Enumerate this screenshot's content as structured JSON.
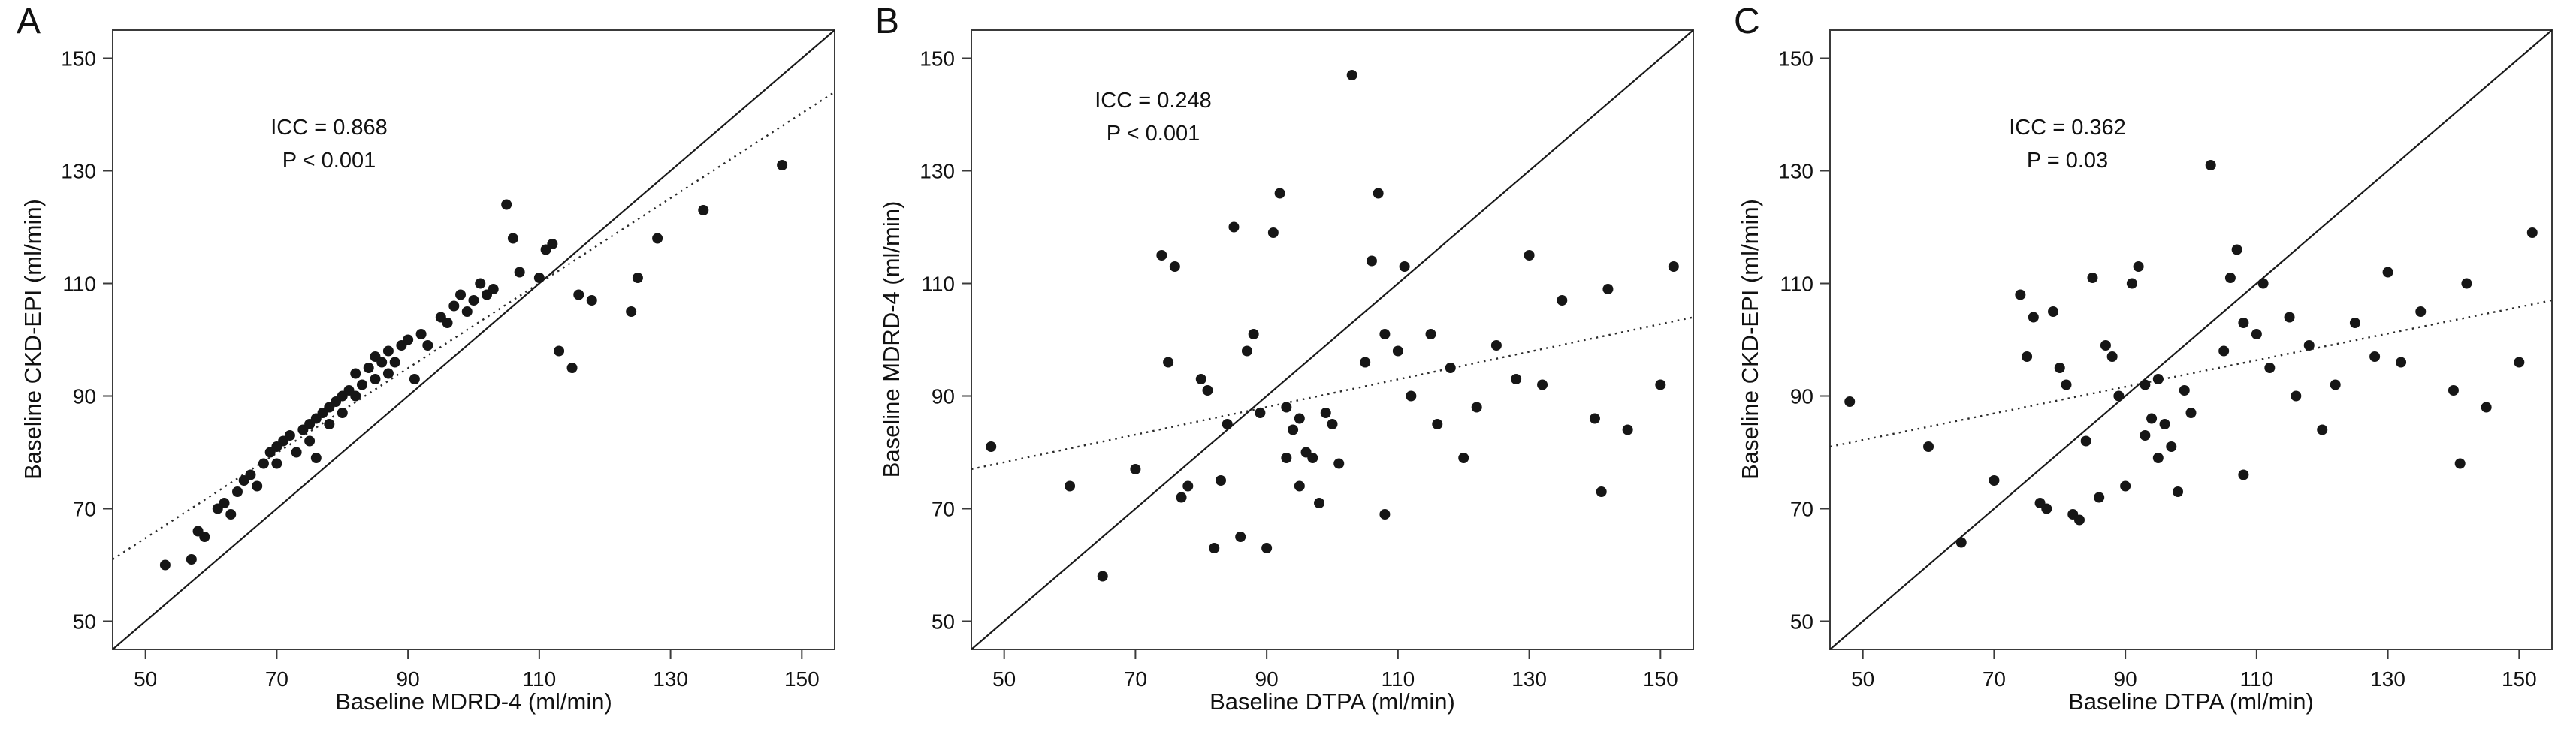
{
  "chart_data": [
    {
      "type": "scatter",
      "panel_label": "A",
      "xlabel": "Baseline MDRD-4 (ml/min)",
      "ylabel": "Baseline CKD-EPI (ml/min)",
      "icc_text": "ICC = 0.868",
      "p_text": "P < 0.001",
      "xlim": [
        45,
        155
      ],
      "ylim": [
        45,
        155
      ],
      "xticks": [
        50,
        70,
        90,
        110,
        130,
        150
      ],
      "yticks": [
        50,
        70,
        90,
        110,
        130,
        150
      ],
      "grid": false,
      "identity_line": {
        "x": [
          45,
          155
        ],
        "y": [
          45,
          155
        ]
      },
      "fit_line": {
        "x": [
          45,
          155
        ],
        "y": [
          61,
          144
        ]
      },
      "point_color": "#161616",
      "points": [
        [
          53,
          60
        ],
        [
          57,
          61
        ],
        [
          58,
          66
        ],
        [
          59,
          65
        ],
        [
          61,
          70
        ],
        [
          62,
          71
        ],
        [
          63,
          69
        ],
        [
          64,
          73
        ],
        [
          65,
          75
        ],
        [
          66,
          76
        ],
        [
          67,
          74
        ],
        [
          68,
          78
        ],
        [
          69,
          80
        ],
        [
          70,
          81
        ],
        [
          70,
          78
        ],
        [
          71,
          82
        ],
        [
          72,
          83
        ],
        [
          73,
          80
        ],
        [
          74,
          84
        ],
        [
          75,
          85
        ],
        [
          75,
          82
        ],
        [
          76,
          86
        ],
        [
          76,
          79
        ],
        [
          77,
          87
        ],
        [
          78,
          85
        ],
        [
          78,
          88
        ],
        [
          79,
          89
        ],
        [
          80,
          90
        ],
        [
          80,
          87
        ],
        [
          81,
          91
        ],
        [
          82,
          90
        ],
        [
          82,
          94
        ],
        [
          83,
          92
        ],
        [
          84,
          95
        ],
        [
          85,
          93
        ],
        [
          85,
          97
        ],
        [
          86,
          96
        ],
        [
          87,
          94
        ],
        [
          87,
          98
        ],
        [
          88,
          96
        ],
        [
          89,
          99
        ],
        [
          90,
          100
        ],
        [
          91,
          93
        ],
        [
          92,
          101
        ],
        [
          93,
          99
        ],
        [
          95,
          104
        ],
        [
          96,
          103
        ],
        [
          97,
          106
        ],
        [
          98,
          108
        ],
        [
          99,
          105
        ],
        [
          100,
          107
        ],
        [
          101,
          110
        ],
        [
          102,
          108
        ],
        [
          103,
          109
        ],
        [
          105,
          124
        ],
        [
          106,
          118
        ],
        [
          107,
          112
        ],
        [
          110,
          111
        ],
        [
          111,
          116
        ],
        [
          112,
          117
        ],
        [
          113,
          98
        ],
        [
          115,
          95
        ],
        [
          116,
          108
        ],
        [
          118,
          107
        ],
        [
          124,
          105
        ],
        [
          125,
          111
        ],
        [
          128,
          118
        ],
        [
          135,
          123
        ],
        [
          147,
          131
        ]
      ]
    },
    {
      "type": "scatter",
      "panel_label": "B",
      "xlabel": "Baseline DTPA (ml/min)",
      "ylabel": "Baseline MDRD-4 (ml/min)",
      "icc_text": "ICC = 0.248",
      "p_text": "P < 0.001",
      "xlim": [
        45,
        155
      ],
      "ylim": [
        45,
        155
      ],
      "xticks": [
        50,
        70,
        90,
        110,
        130,
        150
      ],
      "yticks": [
        50,
        70,
        90,
        110,
        130,
        150
      ],
      "grid": false,
      "identity_line": {
        "x": [
          45,
          155
        ],
        "y": [
          45,
          155
        ]
      },
      "fit_line": {
        "x": [
          45,
          155
        ],
        "y": [
          77,
          104
        ]
      },
      "point_color": "#161616",
      "points": [
        [
          48,
          81
        ],
        [
          60,
          74
        ],
        [
          65,
          58
        ],
        [
          70,
          77
        ],
        [
          74,
          115
        ],
        [
          75,
          96
        ],
        [
          76,
          113
        ],
        [
          77,
          72
        ],
        [
          78,
          74
        ],
        [
          80,
          93
        ],
        [
          81,
          91
        ],
        [
          82,
          63
        ],
        [
          83,
          75
        ],
        [
          84,
          85
        ],
        [
          85,
          120
        ],
        [
          86,
          65
        ],
        [
          87,
          98
        ],
        [
          88,
          101
        ],
        [
          89,
          87
        ],
        [
          90,
          63
        ],
        [
          91,
          119
        ],
        [
          92,
          126
        ],
        [
          93,
          88
        ],
        [
          93,
          79
        ],
        [
          94,
          84
        ],
        [
          95,
          86
        ],
        [
          95,
          74
        ],
        [
          96,
          80
        ],
        [
          97,
          79
        ],
        [
          98,
          71
        ],
        [
          99,
          87
        ],
        [
          100,
          85
        ],
        [
          101,
          78
        ],
        [
          103,
          147
        ],
        [
          105,
          96
        ],
        [
          106,
          114
        ],
        [
          107,
          126
        ],
        [
          108,
          101
        ],
        [
          108,
          69
        ],
        [
          110,
          98
        ],
        [
          111,
          113
        ],
        [
          112,
          90
        ],
        [
          115,
          101
        ],
        [
          116,
          85
        ],
        [
          118,
          95
        ],
        [
          120,
          79
        ],
        [
          122,
          88
        ],
        [
          125,
          99
        ],
        [
          128,
          93
        ],
        [
          130,
          115
        ],
        [
          132,
          92
        ],
        [
          135,
          107
        ],
        [
          140,
          86
        ],
        [
          141,
          73
        ],
        [
          142,
          109
        ],
        [
          145,
          84
        ],
        [
          150,
          92
        ],
        [
          152,
          113
        ]
      ]
    },
    {
      "type": "scatter",
      "panel_label": "C",
      "xlabel": "Baseline DTPA (ml/min)",
      "ylabel": "Baseline CKD-EPI (ml/min)",
      "icc_text": "ICC = 0.362",
      "p_text": "P = 0.03",
      "xlim": [
        45,
        155
      ],
      "ylim": [
        45,
        155
      ],
      "xticks": [
        50,
        70,
        90,
        110,
        130,
        150
      ],
      "yticks": [
        50,
        70,
        90,
        110,
        130,
        150
      ],
      "grid": false,
      "identity_line": {
        "x": [
          45,
          155
        ],
        "y": [
          45,
          155
        ]
      },
      "fit_line": {
        "x": [
          45,
          155
        ],
        "y": [
          81,
          107
        ]
      },
      "point_color": "#161616",
      "points": [
        [
          48,
          89
        ],
        [
          60,
          81
        ],
        [
          65,
          64
        ],
        [
          70,
          75
        ],
        [
          74,
          108
        ],
        [
          75,
          97
        ],
        [
          76,
          104
        ],
        [
          77,
          71
        ],
        [
          78,
          70
        ],
        [
          79,
          105
        ],
        [
          80,
          95
        ],
        [
          81,
          92
        ],
        [
          82,
          69
        ],
        [
          83,
          68
        ],
        [
          84,
          82
        ],
        [
          85,
          111
        ],
        [
          86,
          72
        ],
        [
          87,
          99
        ],
        [
          88,
          97
        ],
        [
          89,
          90
        ],
        [
          90,
          74
        ],
        [
          91,
          110
        ],
        [
          92,
          113
        ],
        [
          93,
          92
        ],
        [
          93,
          83
        ],
        [
          94,
          86
        ],
        [
          95,
          93
        ],
        [
          95,
          79
        ],
        [
          96,
          85
        ],
        [
          97,
          81
        ],
        [
          98,
          73
        ],
        [
          99,
          91
        ],
        [
          100,
          87
        ],
        [
          103,
          131
        ],
        [
          105,
          98
        ],
        [
          106,
          111
        ],
        [
          107,
          116
        ],
        [
          108,
          103
        ],
        [
          108,
          76
        ],
        [
          110,
          101
        ],
        [
          111,
          110
        ],
        [
          112,
          95
        ],
        [
          115,
          104
        ],
        [
          116,
          90
        ],
        [
          118,
          99
        ],
        [
          120,
          84
        ],
        [
          122,
          92
        ],
        [
          125,
          103
        ],
        [
          128,
          97
        ],
        [
          130,
          112
        ],
        [
          132,
          96
        ],
        [
          135,
          105
        ],
        [
          140,
          91
        ],
        [
          141,
          78
        ],
        [
          142,
          110
        ],
        [
          145,
          88
        ],
        [
          150,
          96
        ],
        [
          152,
          119
        ]
      ]
    }
  ]
}
